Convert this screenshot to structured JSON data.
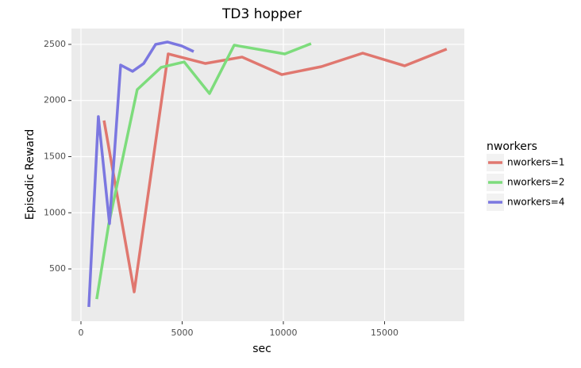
{
  "chart_data": {
    "type": "line",
    "title": "TD3 hopper",
    "x_label": "sec",
    "y_label": "Episodic Reward",
    "legend_title": "nworkers",
    "legend_position": "right",
    "grid": true,
    "xlim": [
      -470,
      18940
    ],
    "ylim": [
      34,
      2641
    ],
    "xticks": [
      0,
      5000,
      10000,
      15000
    ],
    "yticks": [
      500,
      1000,
      1500,
      2000,
      2500
    ],
    "series": [
      {
        "name": "nworkers=1",
        "color": "#e0776f",
        "x": [
          1140,
          2630,
          4310,
          6150,
          7960,
          9920,
          11880,
          13920,
          15990,
          18070
        ],
        "values": [
          1822,
          295,
          2415,
          2330,
          2387,
          2231,
          2302,
          2422,
          2309,
          2458
        ]
      },
      {
        "name": "nworkers=2",
        "color": "#7ddc7c",
        "x": [
          780,
          1370,
          2780,
          3960,
          5100,
          6350,
          7570,
          10070,
          11370
        ],
        "values": [
          231,
          896,
          2097,
          2295,
          2344,
          2062,
          2493,
          2415,
          2507
        ]
      },
      {
        "name": "nworkers=4",
        "color": "#7b77e0",
        "x": [
          390,
          860,
          1410,
          1960,
          2550,
          3100,
          3690,
          4270,
          4980,
          5570
        ],
        "values": [
          161,
          1857,
          903,
          2316,
          2260,
          2330,
          2500,
          2521,
          2486,
          2436
        ]
      }
    ]
  }
}
